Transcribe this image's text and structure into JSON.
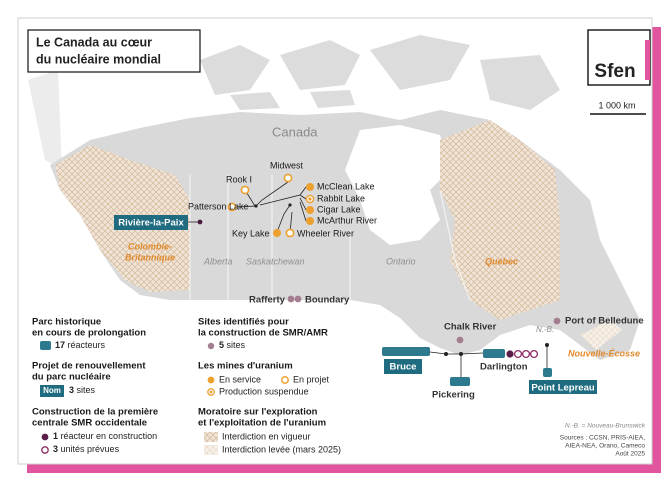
{
  "header": {
    "title": [
      "Le Canada au cœur",
      "du nucléaire mondial"
    ],
    "logo": "Sfen",
    "scale": "1 000 km"
  },
  "map": {
    "country": "Canada",
    "provinces": [
      "Alberta",
      "Saskatchewan",
      "Ontario",
      "Québec",
      [
        "Colombie-",
        "Britannique"
      ],
      "Nouvelle-Écosse",
      "N.-B."
    ],
    "mines": [
      "Rook I",
      "Midwest",
      "McClean Lake",
      "Rabbit Lake",
      "Cigar Lake",
      "McArthur River",
      "Patterson Lake",
      "Key Lake",
      "Wheeler River"
    ],
    "sites": [
      "Rivière-la-Paix",
      "Rafferty",
      "Boundary",
      "Chalk River",
      "Port of Belledune"
    ],
    "plants": [
      "Bruce",
      "Pickering",
      "Darlington",
      "Point Lepreau"
    ]
  },
  "legend": {
    "historic": {
      "title": [
        "Parc historique",
        "en cours de prolongation"
      ],
      "count": 17,
      "text": "réacteurs"
    },
    "renewal": {
      "title": [
        "Projet de renouvellement",
        "du parc nucléaire"
      ],
      "box": "Nom",
      "count": 3,
      "text": "sites"
    },
    "smr_west": {
      "title": [
        "Construction de la première",
        "centrale SMR occidentale"
      ],
      "items": [
        {
          "count": 1,
          "text": "réacteur en construction"
        },
        {
          "count": 3,
          "text": "unités prévues"
        }
      ]
    },
    "smr_sites": {
      "title": [
        "Sites identifiés pour",
        "la construction de SMR/AMR"
      ],
      "count": 5,
      "text": "sites"
    },
    "mines": {
      "title": "Les mines d'uranium",
      "items": [
        "En service",
        "En projet",
        "Production suspendue"
      ]
    },
    "moratorium": {
      "title": [
        "Moratoire sur l'exploration",
        "et l'exploitation de l'uranium"
      ],
      "items": [
        "Interdiction en vigueur",
        "Interdiction levée (mars 2025)"
      ]
    }
  },
  "footer": {
    "note": "N.-B. = Nouveau-Brunswick",
    "sources": [
      "Sources : CCSN, PRIS-AIEA,",
      "AIEA-NEA, Orano, Cameco",
      "Août 2025"
    ]
  }
}
